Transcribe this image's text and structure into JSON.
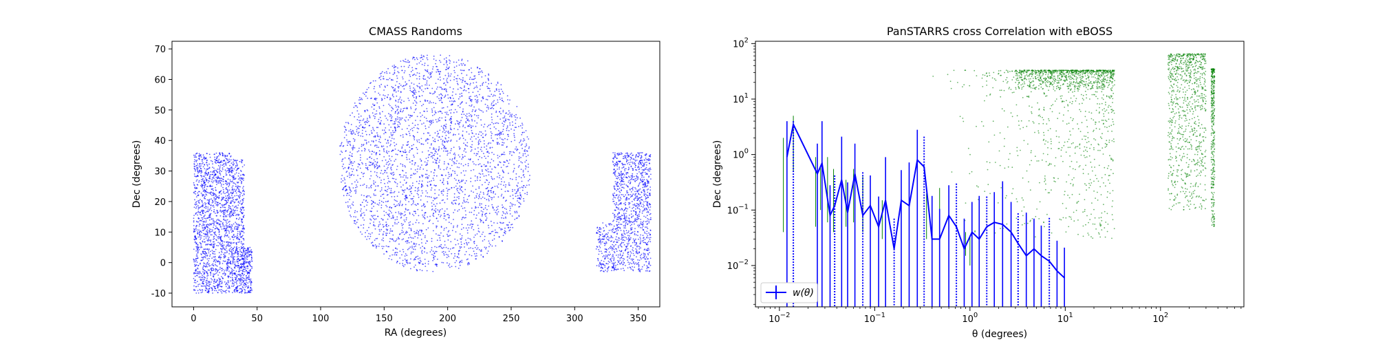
{
  "chart_data": [
    {
      "type": "scatter",
      "title": "CMASS Randoms",
      "xlabel": "RA (degrees)",
      "ylabel": "Dec (degrees)",
      "xlim": [
        -17,
        367
      ],
      "ylim": [
        -14.5,
        72.5
      ],
      "xticks": [
        0,
        50,
        100,
        150,
        200,
        250,
        300,
        350
      ],
      "yticks": [
        -10,
        0,
        10,
        20,
        30,
        40,
        50,
        60,
        70
      ],
      "grid": false,
      "series": [
        {
          "color": "#0000ff",
          "regions": [
            {
              "ra_range": [
                0,
                30
              ],
              "dec_range": [
                -10,
                36
              ],
              "count": 1500
            },
            {
              "ra_range": [
                30,
                46
              ],
              "dec_range": [
                -10,
                5
              ],
              "count": 420
            },
            {
              "ra_range": [
                30,
                40
              ],
              "dec_range": [
                5,
                34
              ],
              "count": 300
            },
            {
              "ra_range": [
                115,
                265
              ],
              "dec_range": [
                -3,
                68
              ],
              "count": 4000
            },
            {
              "ra_range": [
                317,
                360
              ],
              "dec_range": [
                -3,
                13
              ],
              "count": 550
            },
            {
              "ra_range": [
                330,
                360
              ],
              "dec_range": [
                13,
                36
              ],
              "count": 700
            }
          ]
        }
      ]
    },
    {
      "type": "line",
      "title": "PanSTARRS cross Correlation with eBOSS",
      "xlabel": "θ (degrees)",
      "ylabel": "Dec (degrees)",
      "xscale": "log",
      "yscale": "log",
      "xlim": [
        0.0056,
        750
      ],
      "ylim": [
        0.0018,
        110
      ],
      "xticks": [
        "10^-2",
        "10^-1",
        "10^0",
        "10^1",
        "10^2"
      ],
      "yticks": [
        "10^-2",
        "10^-1",
        "10^0",
        "10^1",
        "10^2"
      ],
      "legend": {
        "position": "lower-left",
        "entries": [
          "w(θ)"
        ]
      },
      "series": [
        {
          "name": "w(θ)",
          "color": "#0000ff",
          "x": [
            0.012,
            0.014,
            0.025,
            0.028,
            0.034,
            0.038,
            0.045,
            0.052,
            0.062,
            0.075,
            0.09,
            0.11,
            0.13,
            0.16,
            0.19,
            0.23,
            0.28,
            0.33,
            0.4,
            0.48,
            0.6,
            0.72,
            0.87,
            1.05,
            1.25,
            1.5,
            1.8,
            2.2,
            2.7,
            3.2,
            3.9,
            4.7,
            5.6,
            6.8,
            8.2,
            9.8
          ],
          "y": [
            0.9,
            3.5,
            0.45,
            0.7,
            0.08,
            0.12,
            0.35,
            0.09,
            0.45,
            0.08,
            0.12,
            0.05,
            0.15,
            0.02,
            0.15,
            0.12,
            0.8,
            0.6,
            0.03,
            0.03,
            0.08,
            0.05,
            0.02,
            0.04,
            0.03,
            0.05,
            0.06,
            0.055,
            0.04,
            0.025,
            0.015,
            0.02,
            0.015,
            0.012,
            0.008,
            0.006
          ]
        },
        {
          "name": "",
          "color": "#008000",
          "type": "scatter",
          "regions": [
            {
              "theta_range": [
                0.3,
                33
              ],
              "dec_range": [
                0.03,
                33
              ],
              "count": 900
            },
            {
              "theta_range": [
                3,
                33
              ],
              "dec_range": [
                15,
                33
              ],
              "count": 600
            },
            {
              "theta_range": [
                120,
                300
              ],
              "dec_range": [
                0.1,
                65
              ],
              "count": 900
            },
            {
              "theta_range": [
                340,
                370
              ],
              "dec_range": [
                0.05,
                35
              ],
              "count": 350
            }
          ]
        }
      ]
    }
  ]
}
